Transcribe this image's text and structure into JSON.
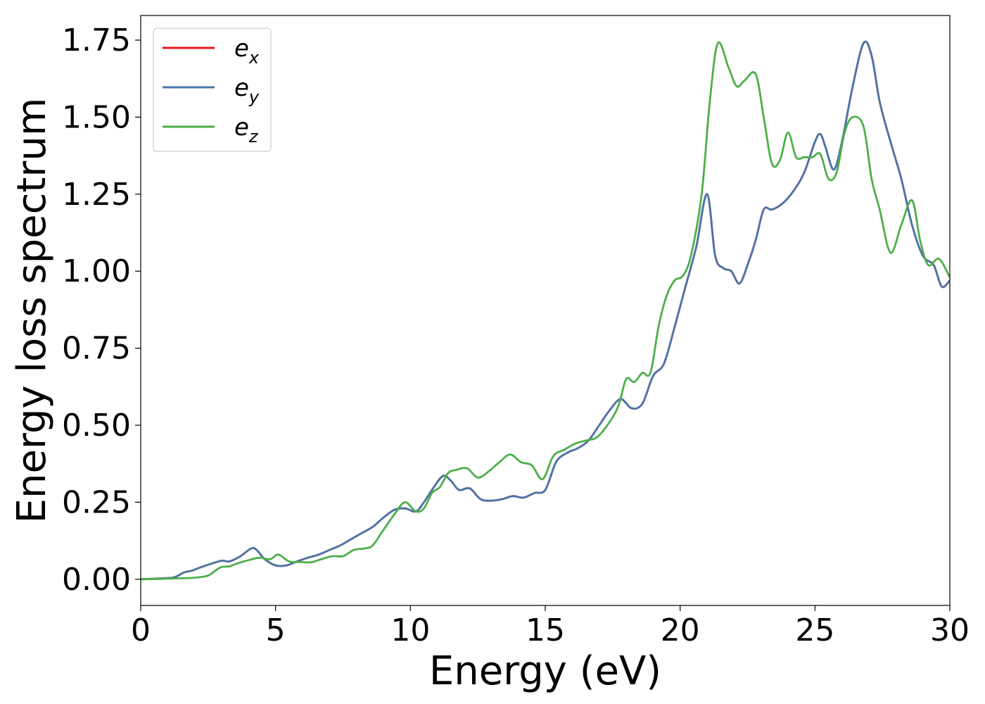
{
  "chart_data": {
    "type": "line",
    "xlabel": "Energy (eV)",
    "ylabel": "Energy loss spectrum",
    "xlim": [
      0,
      30
    ],
    "ylim": [
      -0.085,
      1.83
    ],
    "xticks": [
      0,
      5,
      10,
      15,
      20,
      25,
      30
    ],
    "xtick_labels": [
      "0",
      "5",
      "10",
      "15",
      "20",
      "25",
      "30"
    ],
    "yticks": [
      0,
      0.25,
      0.5,
      0.75,
      1.0,
      1.25,
      1.5,
      1.75
    ],
    "ytick_labels": [
      "0.00",
      "0.25",
      "0.50",
      "0.75",
      "1.00",
      "1.25",
      "1.50",
      "1.75"
    ],
    "grid": false,
    "legend_position": "top-left",
    "series": [
      {
        "name": "e_x",
        "label_base": "e",
        "label_sub": "x",
        "color": "#e41a1c",
        "x": [
          0,
          1,
          1.3,
          1.6,
          1.9,
          2.2,
          2.6,
          3,
          3.3,
          3.7,
          4.1,
          4.3,
          4.6,
          5,
          5.4,
          5.8,
          6.2,
          6.6,
          7,
          7.4,
          7.8,
          8.2,
          8.6,
          9,
          9.4,
          9.8,
          10.2,
          10.5,
          10.8,
          11.2,
          11.5,
          11.8,
          12.2,
          12.6,
          13,
          13.4,
          13.8,
          14.2,
          14.6,
          15,
          15.4,
          15.8,
          16.2,
          16.6,
          17,
          17.4,
          17.8,
          18.2,
          18.6,
          19,
          19.4,
          19.8,
          20.2,
          20.6,
          21,
          21.3,
          21.6,
          21.9,
          22.2,
          22.5,
          22.8,
          23.1,
          23.4,
          23.8,
          24.2,
          24.6,
          25,
          25.2,
          25.4,
          25.7,
          26,
          26.4,
          26.8,
          27.1,
          27.4,
          27.8,
          28.2,
          28.6,
          29,
          29.4,
          29.7,
          30
        ],
        "y": [
          0,
          0.004,
          0.008,
          0.022,
          0.028,
          0.038,
          0.05,
          0.06,
          0.058,
          0.075,
          0.1,
          0.095,
          0.065,
          0.045,
          0.045,
          0.058,
          0.07,
          0.08,
          0.095,
          0.11,
          0.13,
          0.15,
          0.17,
          0.2,
          0.225,
          0.23,
          0.22,
          0.25,
          0.29,
          0.335,
          0.32,
          0.29,
          0.295,
          0.26,
          0.255,
          0.26,
          0.27,
          0.265,
          0.28,
          0.29,
          0.38,
          0.41,
          0.425,
          0.45,
          0.5,
          0.55,
          0.585,
          0.555,
          0.57,
          0.66,
          0.7,
          0.82,
          0.95,
          1.08,
          1.25,
          1.05,
          1.01,
          1.0,
          0.96,
          1.02,
          1.1,
          1.2,
          1.2,
          1.22,
          1.26,
          1.32,
          1.42,
          1.445,
          1.4,
          1.33,
          1.42,
          1.6,
          1.74,
          1.7,
          1.55,
          1.42,
          1.3,
          1.15,
          1.05,
          1.02,
          0.95,
          0.97
        ]
      },
      {
        "name": "e_y",
        "label_base": "e",
        "label_sub": "y",
        "color": "#4a76a8",
        "x": [
          0,
          1,
          1.3,
          1.6,
          1.9,
          2.2,
          2.6,
          3,
          3.3,
          3.7,
          4.1,
          4.3,
          4.6,
          5,
          5.4,
          5.8,
          6.2,
          6.6,
          7,
          7.4,
          7.8,
          8.2,
          8.6,
          9,
          9.4,
          9.8,
          10.2,
          10.5,
          10.8,
          11.2,
          11.5,
          11.8,
          12.2,
          12.6,
          13,
          13.4,
          13.8,
          14.2,
          14.6,
          15,
          15.4,
          15.8,
          16.2,
          16.6,
          17,
          17.4,
          17.8,
          18.2,
          18.6,
          19,
          19.4,
          19.8,
          20.2,
          20.6,
          21,
          21.3,
          21.6,
          21.9,
          22.2,
          22.5,
          22.8,
          23.1,
          23.4,
          23.8,
          24.2,
          24.6,
          25,
          25.2,
          25.4,
          25.7,
          26,
          26.4,
          26.8,
          27.1,
          27.4,
          27.8,
          28.2,
          28.6,
          29,
          29.4,
          29.7,
          30
        ],
        "y": [
          0,
          0.004,
          0.008,
          0.022,
          0.028,
          0.038,
          0.05,
          0.06,
          0.058,
          0.075,
          0.1,
          0.095,
          0.065,
          0.045,
          0.045,
          0.058,
          0.07,
          0.08,
          0.095,
          0.11,
          0.13,
          0.15,
          0.17,
          0.2,
          0.225,
          0.23,
          0.22,
          0.25,
          0.29,
          0.335,
          0.32,
          0.29,
          0.295,
          0.26,
          0.255,
          0.26,
          0.27,
          0.265,
          0.28,
          0.29,
          0.38,
          0.41,
          0.425,
          0.45,
          0.5,
          0.55,
          0.585,
          0.555,
          0.57,
          0.66,
          0.7,
          0.82,
          0.95,
          1.08,
          1.25,
          1.05,
          1.01,
          1.0,
          0.96,
          1.02,
          1.1,
          1.2,
          1.2,
          1.22,
          1.26,
          1.32,
          1.42,
          1.445,
          1.4,
          1.33,
          1.42,
          1.6,
          1.74,
          1.7,
          1.55,
          1.42,
          1.3,
          1.15,
          1.05,
          1.02,
          0.95,
          0.97
        ]
      },
      {
        "name": "e_z",
        "label_base": "e",
        "label_sub": "z",
        "color": "#4daf4a",
        "x": [
          0,
          1,
          2,
          2.5,
          2.8,
          3,
          3.3,
          3.6,
          4,
          4.4,
          4.8,
          5.1,
          5.5,
          5.9,
          6.3,
          6.7,
          7.1,
          7.5,
          7.9,
          8.3,
          8.6,
          9,
          9.4,
          9.8,
          10.2,
          10.5,
          10.8,
          11.1,
          11.4,
          11.7,
          12.1,
          12.5,
          12.9,
          13.3,
          13.7,
          14.1,
          14.5,
          14.9,
          15.3,
          15.7,
          16.1,
          16.5,
          16.9,
          17.3,
          17.7,
          18,
          18.3,
          18.6,
          18.9,
          19.2,
          19.5,
          19.8,
          20.1,
          20.4,
          20.8,
          21.1,
          21.4,
          21.8,
          22.1,
          22.4,
          22.8,
          23.1,
          23.4,
          23.7,
          24,
          24.3,
          24.6,
          24.9,
          25.2,
          25.5,
          25.8,
          26.1,
          26.4,
          26.8,
          27.1,
          27.4,
          27.8,
          28.2,
          28.6,
          28.9,
          29.2,
          29.6,
          30
        ],
        "y": [
          0,
          0.002,
          0.005,
          0.012,
          0.03,
          0.04,
          0.042,
          0.052,
          0.062,
          0.07,
          0.065,
          0.08,
          0.058,
          0.056,
          0.055,
          0.065,
          0.075,
          0.075,
          0.095,
          0.1,
          0.11,
          0.16,
          0.21,
          0.25,
          0.22,
          0.23,
          0.28,
          0.3,
          0.345,
          0.355,
          0.36,
          0.33,
          0.35,
          0.38,
          0.405,
          0.38,
          0.37,
          0.325,
          0.4,
          0.42,
          0.44,
          0.45,
          0.46,
          0.5,
          0.56,
          0.65,
          0.64,
          0.67,
          0.67,
          0.82,
          0.92,
          0.97,
          0.985,
          1.05,
          1.25,
          1.55,
          1.74,
          1.66,
          1.6,
          1.62,
          1.64,
          1.5,
          1.35,
          1.36,
          1.45,
          1.37,
          1.37,
          1.37,
          1.38,
          1.3,
          1.32,
          1.45,
          1.5,
          1.47,
          1.3,
          1.2,
          1.06,
          1.15,
          1.23,
          1.1,
          1.02,
          1.04,
          0.98
        ]
      }
    ]
  }
}
